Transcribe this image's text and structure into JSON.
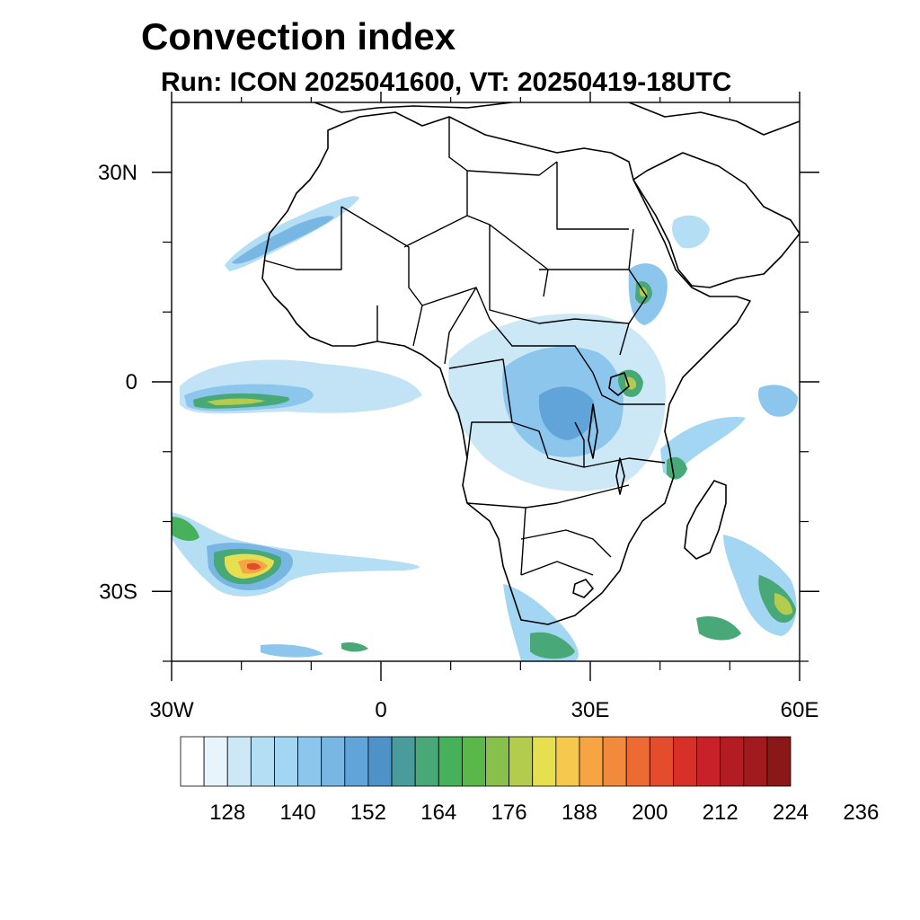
{
  "title": "Convection index",
  "subtitle": "Run: ICON 2025041600,  VT: 20250419-18UTC",
  "map": {
    "lon_range": [
      -30,
      60
    ],
    "lat_range": [
      -40,
      40
    ],
    "x_ticks": [
      {
        "lon": -30,
        "label": "30W"
      },
      {
        "lon": 0,
        "label": "0"
      },
      {
        "lon": 30,
        "label": "30E"
      },
      {
        "lon": 60,
        "label": "60E"
      }
    ],
    "y_ticks": [
      {
        "lat": 30,
        "label": "30N"
      },
      {
        "lat": 0,
        "label": "0"
      },
      {
        "lat": -30,
        "label": "30S"
      }
    ],
    "minor_lon_ticks": [
      -20,
      -10,
      10,
      20,
      40,
      50
    ],
    "minor_lat_ticks": [
      20,
      10,
      -10,
      -20,
      -40
    ]
  },
  "colorbar": {
    "colors": [
      "#ffffff",
      "#e8f4fb",
      "#cce8f6",
      "#b4def3",
      "#a2d6f2",
      "#8cc6ec",
      "#78b6e4",
      "#60a4da",
      "#4f92c8",
      "#4a9c9c",
      "#48a878",
      "#46b05a",
      "#5ab848",
      "#88c04c",
      "#b4cc4e",
      "#e6e050",
      "#f6c84e",
      "#f6a444",
      "#f28a3e",
      "#ec6a34",
      "#e44c2e",
      "#d83028",
      "#c82228",
      "#b41c24",
      "#a01a1e",
      "#8a1818"
    ],
    "labels": [
      "128",
      "140",
      "152",
      "164",
      "176",
      "188",
      "200",
      "212",
      "224",
      "236"
    ]
  },
  "chart_data": {
    "type": "heatmap",
    "title": "Convection index",
    "subtitle": "Run: ICON 2025041600,  VT: 20250419-18UTC",
    "xlabel": "",
    "ylabel": "",
    "xlim": [
      -30,
      60
    ],
    "ylim": [
      -40,
      40
    ],
    "colorbar_levels": [
      128,
      140,
      152,
      164,
      176,
      188,
      200,
      212,
      224,
      236
    ],
    "regions": [
      {
        "name": "",
        "lon": [
          -25,
          -10
        ],
        "lat": [
          1,
          -3
        ],
        "value": 170
      },
      {
        "name": "",
        "lon": [
          -18,
          -5
        ],
        "lat": [
          21,
          17
        ],
        "value": 150
      },
      {
        "name": "",
        "lon": [
          -22,
          -13
        ],
        "lat": [
          -25,
          -31
        ],
        "value": 200
      },
      {
        "name": "",
        "lon": [
          5,
          40
        ],
        "lat": [
          8,
          -15
        ],
        "value": 150
      },
      {
        "name": "",
        "lon": [
          35,
          42
        ],
        "lat": [
          15,
          8
        ],
        "value": 165
      },
      {
        "name": "",
        "lon": [
          34,
          38
        ],
        "lat": [
          0,
          -3
        ],
        "value": 168
      },
      {
        "name": "",
        "lon": [
          42,
          55
        ],
        "lat": [
          -5,
          -17
        ],
        "value": 152
      },
      {
        "name": "",
        "lon": [
          50,
          60
        ],
        "lat": [
          -25,
          -38
        ],
        "value": 176
      },
      {
        "name": "",
        "lon": [
          40,
          50
        ],
        "lat": [
          -33,
          -38
        ],
        "value": 170
      },
      {
        "name": "",
        "lon": [
          55,
          60
        ],
        "lat": [
          0,
          -5
        ],
        "value": 155
      }
    ]
  }
}
